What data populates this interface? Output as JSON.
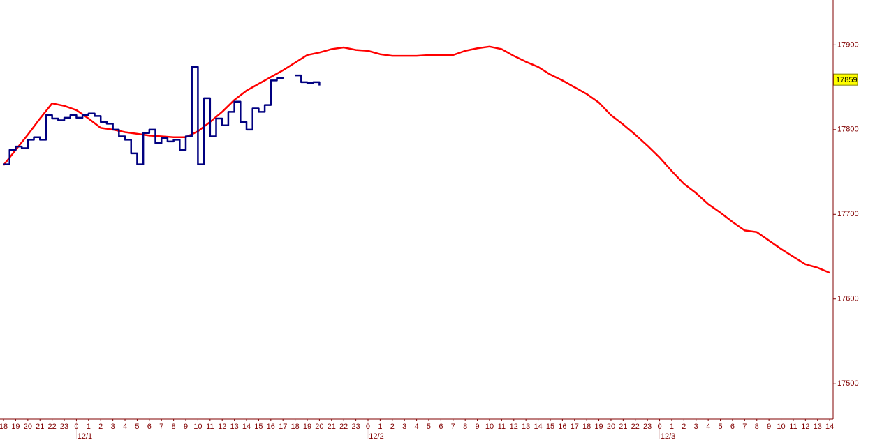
{
  "chart_data": {
    "type": "line",
    "xlim": [
      -0.29,
      68.28
    ],
    "ylim": [
      17459,
      17953
    ],
    "yticks": [
      17500,
      17600,
      17700,
      17800,
      17900
    ],
    "last_price": 17859,
    "xticks": [
      {
        "value": 0,
        "label": "18"
      },
      {
        "value": 1,
        "label": "19"
      },
      {
        "value": 2,
        "label": "20"
      },
      {
        "value": 3,
        "label": "21"
      },
      {
        "value": 4,
        "label": "22"
      },
      {
        "value": 5,
        "label": "23"
      },
      {
        "value": 6,
        "label": "0"
      },
      {
        "value": 7,
        "label": "1"
      },
      {
        "value": 8,
        "label": "2"
      },
      {
        "value": 9,
        "label": "3"
      },
      {
        "value": 10,
        "label": "4"
      },
      {
        "value": 11,
        "label": "5"
      },
      {
        "value": 12,
        "label": "6"
      },
      {
        "value": 13,
        "label": "7"
      },
      {
        "value": 14,
        "label": "8"
      },
      {
        "value": 15,
        "label": "9"
      },
      {
        "value": 16,
        "label": "10"
      },
      {
        "value": 17,
        "label": "11"
      },
      {
        "value": 18,
        "label": "12"
      },
      {
        "value": 19,
        "label": "13"
      },
      {
        "value": 20,
        "label": "14"
      },
      {
        "value": 21,
        "label": "15"
      },
      {
        "value": 22,
        "label": "16"
      },
      {
        "value": 23,
        "label": "17"
      },
      {
        "value": 24,
        "label": "18"
      },
      {
        "value": 25,
        "label": "19"
      },
      {
        "value": 26,
        "label": "20"
      },
      {
        "value": 27,
        "label": "21"
      },
      {
        "value": 28,
        "label": "22"
      },
      {
        "value": 29,
        "label": "23"
      },
      {
        "value": 30,
        "label": "0"
      },
      {
        "value": 31,
        "label": "1"
      },
      {
        "value": 32,
        "label": "2"
      },
      {
        "value": 33,
        "label": "3"
      },
      {
        "value": 34,
        "label": "4"
      },
      {
        "value": 35,
        "label": "5"
      },
      {
        "value": 36,
        "label": "6"
      },
      {
        "value": 37,
        "label": "7"
      },
      {
        "value": 38,
        "label": "8"
      },
      {
        "value": 39,
        "label": "9"
      },
      {
        "value": 40,
        "label": "10"
      },
      {
        "value": 41,
        "label": "11"
      },
      {
        "value": 42,
        "label": "12"
      },
      {
        "value": 43,
        "label": "13"
      },
      {
        "value": 44,
        "label": "14"
      },
      {
        "value": 45,
        "label": "15"
      },
      {
        "value": 46,
        "label": "16"
      },
      {
        "value": 47,
        "label": "17"
      },
      {
        "value": 48,
        "label": "18"
      },
      {
        "value": 49,
        "label": "19"
      },
      {
        "value": 50,
        "label": "20"
      },
      {
        "value": 51,
        "label": "21"
      },
      {
        "value": 52,
        "label": "22"
      },
      {
        "value": 53,
        "label": "23"
      },
      {
        "value": 54,
        "label": "0"
      },
      {
        "value": 55,
        "label": "1"
      },
      {
        "value": 56,
        "label": "2"
      },
      {
        "value": 57,
        "label": "3"
      },
      {
        "value": 58,
        "label": "4"
      },
      {
        "value": 59,
        "label": "5"
      },
      {
        "value": 60,
        "label": "6"
      },
      {
        "value": 61,
        "label": "7"
      },
      {
        "value": 62,
        "label": "8"
      },
      {
        "value": 63,
        "label": "9"
      },
      {
        "value": 64,
        "label": "10"
      },
      {
        "value": 65,
        "label": "11"
      },
      {
        "value": 66,
        "label": "12"
      },
      {
        "value": 67,
        "label": "13"
      },
      {
        "value": 68,
        "label": "14"
      }
    ],
    "date_labels": [
      {
        "value": 6,
        "label": "12/1"
      },
      {
        "value": 30,
        "label": "12/2"
      },
      {
        "value": 54,
        "label": "12/3"
      }
    ],
    "series": [
      {
        "color": "#ff0000",
        "step": false,
        "x": [
          0,
          1,
          2,
          3,
          4,
          5,
          6,
          7,
          8,
          9,
          10,
          11,
          12,
          13,
          14,
          15,
          16,
          17,
          18,
          19,
          20,
          21,
          22,
          23,
          24,
          25,
          26,
          27,
          28,
          29,
          30,
          31,
          32,
          33,
          34,
          35,
          36,
          37,
          38,
          39,
          40,
          41,
          42,
          43,
          44,
          45,
          46,
          47,
          48,
          49,
          50,
          51,
          52,
          53,
          54,
          55,
          56,
          57,
          58,
          59,
          60,
          61,
          62,
          63,
          64,
          65,
          66,
          67,
          68
        ],
        "values": [
          17758,
          17776,
          17794,
          17813,
          17831,
          17828,
          17823,
          17813,
          17802,
          17800,
          17797,
          17795,
          17793,
          17792,
          17791,
          17791,
          17798,
          17809,
          17821,
          17835,
          17846,
          17854,
          17862,
          17870,
          17879,
          17888,
          17891,
          17895,
          17897,
          17894,
          17893,
          17889,
          17887,
          17887,
          17887,
          17888,
          17888,
          17888,
          17893,
          17896,
          17898,
          17895,
          17887,
          17880,
          17874,
          17865,
          17858,
          17850,
          17842,
          17832,
          17817,
          17806,
          17794,
          17781,
          17767,
          17751,
          17736,
          17725,
          17712,
          17702,
          17691,
          17681,
          17679,
          17669,
          17659,
          17650,
          17641,
          17637,
          17631
        ]
      },
      {
        "color": "#000080",
        "step": true,
        "x": [
          0,
          0.5,
          1,
          1.5,
          2,
          2.5,
          3,
          3.5,
          4,
          4.5,
          5,
          5.5,
          6,
          6.5,
          7,
          7.5,
          8,
          8.5,
          9,
          9.5,
          10,
          10.5,
          11,
          11.5,
          12,
          12.5,
          13,
          13.5,
          14,
          14.5,
          15,
          15.5,
          16,
          16.5,
          17,
          17.5,
          18,
          18.5,
          19,
          19.5,
          20,
          20.5,
          21,
          21.5,
          22,
          22.5,
          23,
          23.5,
          24,
          24.5,
          25,
          25.5,
          26
        ],
        "values": [
          17759,
          17776,
          17780,
          17778,
          17788,
          17791,
          17788,
          17817,
          17813,
          17811,
          17814,
          17817,
          17814,
          17817,
          17819,
          17816,
          17809,
          17807,
          17800,
          17792,
          17788,
          17772,
          17759,
          17796,
          17800,
          17784,
          17790,
          17786,
          17788,
          17776,
          17792,
          17874,
          17759,
          17837,
          17792,
          17813,
          17805,
          17821,
          17833,
          17809,
          17800,
          17825,
          17821,
          17829,
          17858,
          17861,
          17862,
          null,
          17864,
          17856,
          17855,
          17856,
          17852
        ]
      }
    ]
  }
}
